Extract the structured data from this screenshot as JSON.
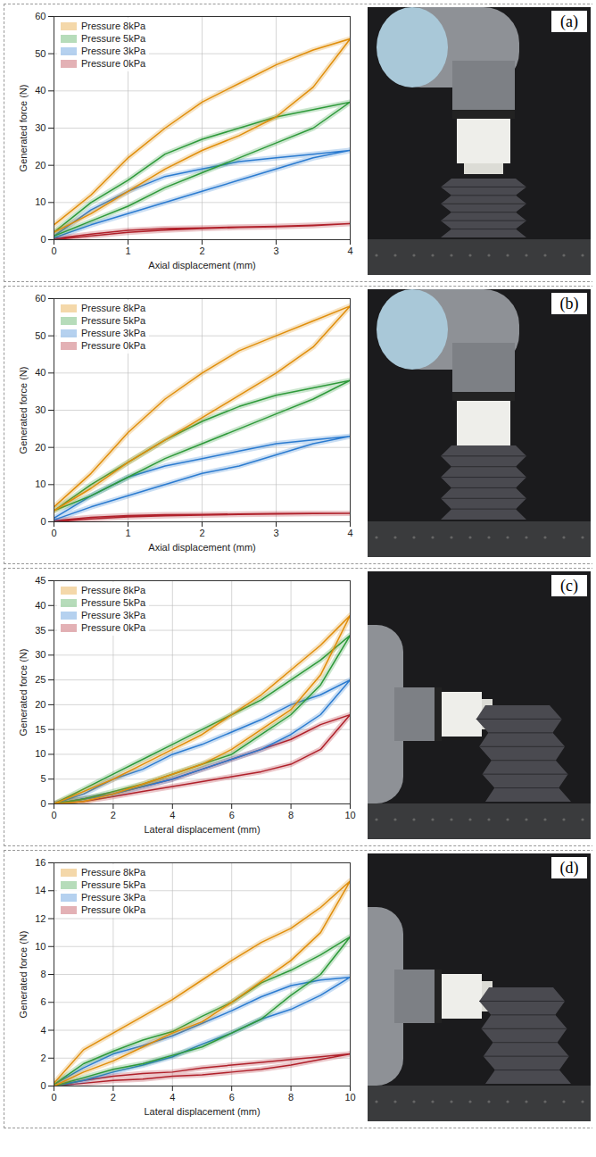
{
  "chart_data": [
    {
      "type": "line",
      "panel_label": "(a)",
      "x_label": "Axial displacement (mm)",
      "y_label": "Generated force (N)",
      "xlim": [
        0,
        4
      ],
      "xticks": [
        0,
        1,
        2,
        3,
        4
      ],
      "ylim": [
        0,
        60
      ],
      "yticks": [
        0,
        10,
        20,
        30,
        40,
        50,
        60
      ],
      "grid": true,
      "legend": "top-left",
      "x": [
        0,
        0.5,
        1,
        1.5,
        2,
        2.5,
        3,
        3.5,
        4,
        3.5,
        3,
        2.5,
        2,
        1.5,
        1,
        0.5,
        0
      ],
      "series": [
        {
          "name": "Pressure 8kPa",
          "color": "#e08e0b",
          "values": [
            2,
            7,
            13,
            19,
            24,
            28,
            33,
            41,
            54,
            51,
            47,
            42,
            37,
            30,
            22,
            12,
            4
          ]
        },
        {
          "name": "Pressure 5kPa",
          "color": "#2e9a3a",
          "values": [
            1,
            5,
            9,
            14,
            18,
            22,
            26,
            30,
            37,
            35,
            33,
            30,
            27,
            23,
            16,
            10,
            2
          ]
        },
        {
          "name": "Pressure 3kPa",
          "color": "#2b7bd0",
          "values": [
            0.5,
            4,
            7,
            10,
            13,
            16,
            19,
            22,
            24,
            23,
            22,
            21,
            19,
            17,
            13,
            8,
            1
          ]
        },
        {
          "name": "Pressure 0kPa",
          "color": "#b0202a",
          "values": [
            0,
            1,
            2,
            2.6,
            3,
            3.3,
            3.5,
            3.8,
            4.3,
            3.9,
            3.6,
            3.4,
            3.2,
            3,
            2.5,
            1.5,
            0.3
          ]
        }
      ]
    },
    {
      "type": "line",
      "panel_label": "(b)",
      "x_label": "Axial displacement (mm)",
      "y_label": "Generated force (N)",
      "xlim": [
        0,
        4
      ],
      "xticks": [
        0,
        1,
        2,
        3,
        4
      ],
      "ylim": [
        0,
        60
      ],
      "yticks": [
        0,
        10,
        20,
        30,
        40,
        50,
        60
      ],
      "grid": true,
      "legend": "top-left",
      "x": [
        0,
        0.5,
        1,
        1.5,
        2,
        2.5,
        3,
        3.5,
        4,
        3.5,
        3,
        2.5,
        2,
        1.5,
        1,
        0.5,
        0
      ],
      "series": [
        {
          "name": "Pressure 8kPa",
          "color": "#e08e0b",
          "values": [
            3,
            9,
            16,
            22,
            28,
            34,
            40,
            47,
            58,
            54,
            50,
            46,
            40,
            33,
            24,
            13,
            4
          ]
        },
        {
          "name": "Pressure 5kPa",
          "color": "#2e9a3a",
          "values": [
            3,
            7,
            12,
            17,
            21,
            25,
            29,
            33,
            38,
            36,
            34,
            31,
            27,
            22,
            16,
            10,
            3
          ]
        },
        {
          "name": "Pressure 3kPa",
          "color": "#2b7bd0",
          "values": [
            0.5,
            4,
            7,
            10,
            13,
            15,
            18,
            21,
            23,
            22,
            21,
            19,
            17,
            15,
            12,
            7,
            1
          ]
        },
        {
          "name": "Pressure 0kPa",
          "color": "#b0202a",
          "values": [
            0,
            0.8,
            1.3,
            1.6,
            1.8,
            2,
            2.1,
            2.2,
            2.3,
            2.3,
            2.2,
            2.1,
            2,
            1.9,
            1.7,
            1.2,
            0.3
          ]
        }
      ]
    },
    {
      "type": "line",
      "panel_label": "(c)",
      "x_label": "Lateral displacement (mm)",
      "y_label": "Generated force (N)",
      "xlim": [
        0,
        10
      ],
      "xticks": [
        0,
        2,
        4,
        6,
        8,
        10
      ],
      "ylim": [
        0,
        45
      ],
      "yticks": [
        0,
        5,
        10,
        15,
        20,
        25,
        30,
        35,
        40,
        45
      ],
      "grid": true,
      "legend": "top-left",
      "x": [
        0,
        1,
        2,
        3,
        4,
        5,
        6,
        7,
        8,
        9,
        10,
        9,
        8,
        7,
        6,
        5,
        4,
        3,
        2,
        1,
        0
      ],
      "series": [
        {
          "name": "Pressure 8kPa",
          "color": "#e08e0b",
          "values": [
            0,
            0.5,
            2,
            4,
            6,
            8,
            11,
            15,
            19,
            26,
            38,
            32,
            27,
            22,
            18,
            14,
            11,
            8,
            5,
            2.5,
            0
          ]
        },
        {
          "name": "Pressure 5kPa",
          "color": "#2e9a3a",
          "values": [
            0,
            1,
            2.5,
            4,
            6,
            8,
            10,
            14,
            18,
            24,
            34,
            29,
            25,
            21,
            18,
            15,
            12,
            9,
            6,
            3,
            0
          ]
        },
        {
          "name": "Pressure 3kPa",
          "color": "#2b7bd0",
          "values": [
            0,
            1,
            2,
            3.5,
            5,
            7,
            9,
            11,
            14,
            18,
            25,
            22,
            20,
            17,
            14.5,
            12,
            10,
            7,
            5,
            2,
            0
          ]
        },
        {
          "name": "Pressure 0kPa",
          "color": "#b0202a",
          "values": [
            0,
            0.5,
            1.5,
            2.5,
            3.5,
            4.5,
            5.5,
            6.5,
            8,
            11,
            18,
            16,
            13,
            11,
            9,
            7,
            5,
            3.5,
            2,
            1,
            0
          ]
        }
      ]
    },
    {
      "type": "line",
      "panel_label": "(d)",
      "x_label": "Lateral displacement (mm)",
      "y_label": "Generated force (N)",
      "xlim": [
        0,
        10
      ],
      "xticks": [
        0,
        2,
        4,
        6,
        8,
        10
      ],
      "ylim": [
        0,
        16
      ],
      "yticks": [
        0,
        2,
        4,
        6,
        8,
        10,
        12,
        14,
        16
      ],
      "grid": true,
      "legend": "top-left",
      "x": [
        0,
        1,
        2,
        3,
        4,
        5,
        6,
        7,
        8,
        9,
        10,
        9,
        8,
        7,
        6,
        5,
        4,
        3,
        2,
        1,
        0
      ],
      "series": [
        {
          "name": "Pressure 8kPa",
          "color": "#e08e0b",
          "values": [
            0,
            1,
            1.8,
            2.8,
            3.8,
            4.6,
            6,
            7.5,
            9,
            11,
            14.7,
            12.8,
            11.3,
            10.3,
            9,
            7.6,
            6.2,
            5,
            3.8,
            2.6,
            0.2
          ]
        },
        {
          "name": "Pressure 5kPa",
          "color": "#2e9a3a",
          "values": [
            0,
            0.6,
            1.2,
            1.6,
            2.2,
            2.8,
            3.8,
            4.8,
            6.5,
            8,
            10.7,
            9.4,
            8.3,
            7.4,
            6,
            5,
            3.9,
            3.3,
            2.5,
            1.6,
            0.1
          ]
        },
        {
          "name": "Pressure 3kPa",
          "color": "#2b7bd0",
          "values": [
            0,
            0.4,
            1,
            1.5,
            2.1,
            3,
            3.8,
            4.8,
            5.5,
            6.5,
            7.8,
            7.6,
            7.2,
            6.4,
            5.4,
            4.5,
            3.6,
            2.9,
            2.3,
            1.3,
            0.1
          ]
        },
        {
          "name": "Pressure 0kPa",
          "color": "#b0202a",
          "values": [
            0,
            0.2,
            0.4,
            0.5,
            0.7,
            0.8,
            1,
            1.2,
            1.5,
            1.9,
            2.3,
            2.1,
            1.9,
            1.7,
            1.5,
            1.3,
            1,
            0.9,
            0.7,
            0.4,
            0
          ]
        }
      ]
    }
  ]
}
